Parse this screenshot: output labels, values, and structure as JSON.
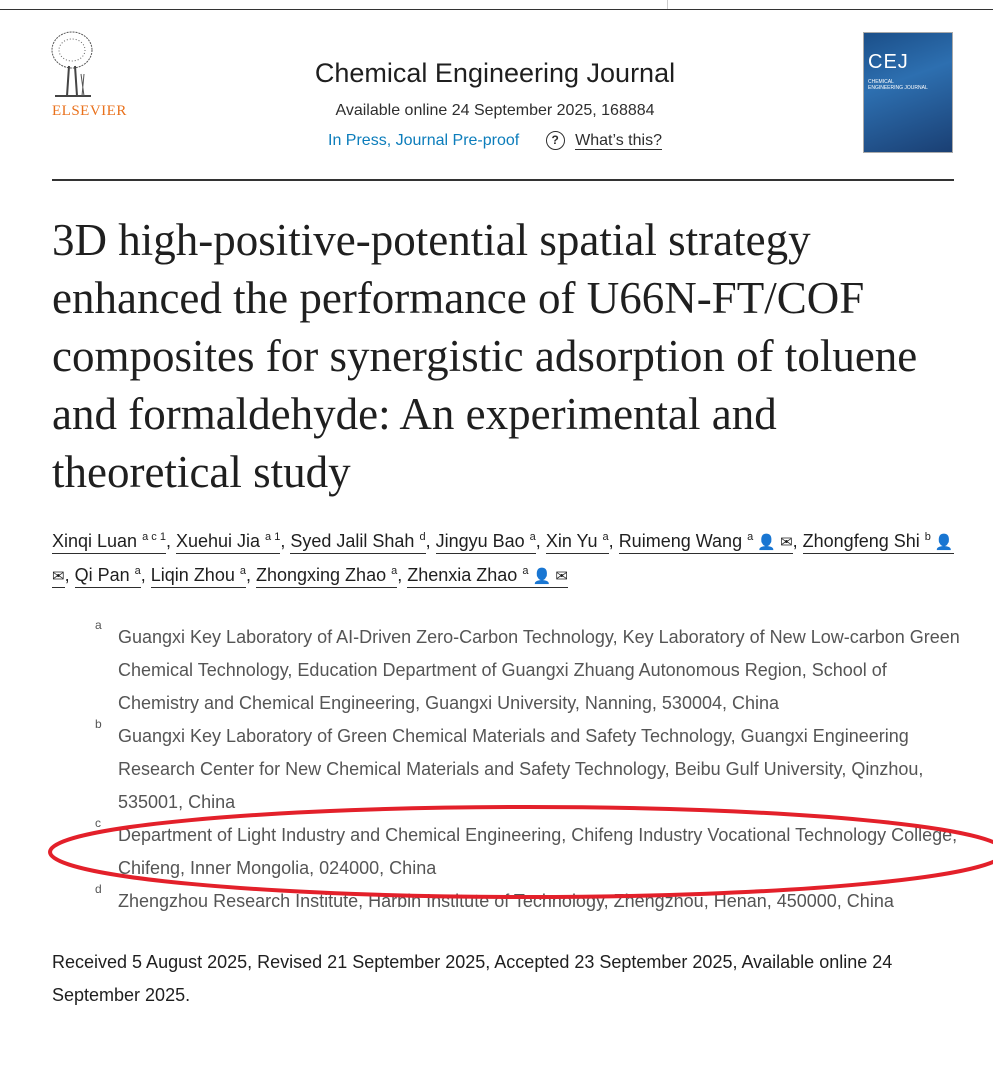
{
  "publisher": {
    "name": "ELSEVIER",
    "brand_color": "#e9711c"
  },
  "journal": {
    "title": "Chemical Engineering Journal",
    "available": "Available online 24 September 2025, 168884",
    "status_link": "In Press, Journal Pre-proof",
    "help_icon": "question-circle-icon",
    "help_link": "What’s this?",
    "cover_text": "CEJ",
    "cover_subtext": "CHEMICAL ENGINEERING JOURNAL"
  },
  "article": {
    "title": "3D high-positive-potential spatial strategy enhanced the performance of U66N-FT/COF composites for synergistic adsorption of toluene and formaldehyde: An experimental and theoretical study"
  },
  "authors": [
    {
      "name": "Xinqi Luan",
      "sup": "a c 1"
    },
    {
      "name": "Xuehui Jia",
      "sup": "a 1"
    },
    {
      "name": "Syed Jalil Shah",
      "sup": "d"
    },
    {
      "name": "Jingyu Bao",
      "sup": "a"
    },
    {
      "name": "Xin Yu",
      "sup": "a"
    },
    {
      "name": "Ruimeng Wang",
      "sup": "a",
      "icons": "👤 ✉"
    },
    {
      "name": "Zhongfeng Shi",
      "sup": "b",
      "icons": "👤 ✉"
    },
    {
      "name": "Qi Pan",
      "sup": "a"
    },
    {
      "name": "Liqin Zhou",
      "sup": "a"
    },
    {
      "name": "Zhongxing Zhao",
      "sup": "a"
    },
    {
      "name": "Zhenxia Zhao",
      "sup": "a",
      "icons": "👤 ✉"
    }
  ],
  "affiliations": [
    {
      "label": "a",
      "text": "Guangxi Key Laboratory of AI-Driven Zero-Carbon Technology, Key Laboratory of New Low-carbon Green Chemical Technology, Education Department of Guangxi Zhuang Autonomous Region, School of Chemistry and Chemical Engineering, Guangxi University, Nanning, 530004, China"
    },
    {
      "label": "b",
      "text": "Guangxi Key Laboratory of Green Chemical Materials and Safety Technology, Guangxi Engineering Research Center for New Chemical Materials and Safety Technology, Beibu Gulf University, Qinzhou, 535001, China"
    },
    {
      "label": "c",
      "text": "Department of Light Industry and Chemical Engineering, Chifeng Industry Vocational Technology College, Chifeng, Inner Mongolia, 024000, China"
    },
    {
      "label": "d",
      "text": "Zhengzhou Research Institute, Harbin Institute of Technology, Zhengzhou, Henan, 450000, China"
    }
  ],
  "dates": "Received 5 August 2025, Revised 21 September 2025, Accepted 23 September 2025, Available online 24 September 2025.",
  "annotation": {
    "color": "#e3202a"
  }
}
